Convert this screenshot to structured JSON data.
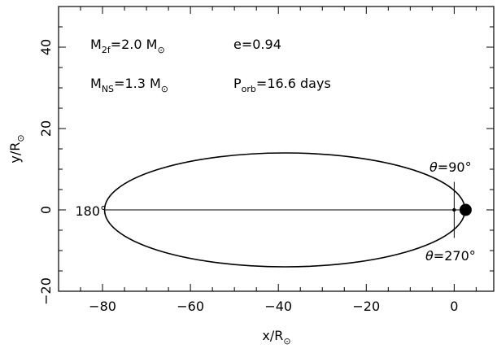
{
  "chart_data": {
    "type": "line",
    "xlabel": {
      "main": "x/R",
      "sub": "⊙"
    },
    "ylabel": {
      "main": "y/R",
      "sub": "⊙"
    },
    "xlim": [
      -90,
      9
    ],
    "ylim": [
      -20,
      50
    ],
    "xticks": [
      -80,
      -60,
      -40,
      -20,
      0
    ],
    "xtick_labels": [
      "−80",
      "−60",
      "−40",
      "−20",
      "0"
    ],
    "yticks": [
      -20,
      0,
      20,
      40
    ],
    "ytick_labels": [
      "−20",
      "0",
      "20",
      "40"
    ],
    "x_minor_step": 5,
    "y_minor_step": 5,
    "grid": false,
    "orbit": {
      "eccentricity": 0.94,
      "semi_major_axis": 41.0,
      "semi_minor_axis": 14.0,
      "focus_x": 0,
      "focus_y": 0
    },
    "series": [
      {
        "role": "orbit-ellipse",
        "points": [
          [
            2.6,
            0
          ],
          [
            2.0,
            4.2
          ],
          [
            0.4,
            6.9
          ],
          [
            -5.0,
            9.9
          ],
          [
            -15.0,
            12.7
          ],
          [
            -25.0,
            13.7
          ],
          [
            -38.4,
            14.0
          ],
          [
            -50.0,
            13.6
          ],
          [
            -60.0,
            12.1
          ],
          [
            -70.0,
            9.0
          ],
          [
            -75.0,
            6.2
          ],
          [
            -78.0,
            3.5
          ],
          [
            -79.4,
            0
          ],
          [
            -78.0,
            -3.5
          ],
          [
            -75.0,
            -6.2
          ],
          [
            -70.0,
            -9.0
          ],
          [
            -60.0,
            -12.1
          ],
          [
            -50.0,
            -13.6
          ],
          [
            -38.4,
            -14.0
          ],
          [
            -25.0,
            -13.7
          ],
          [
            -15.0,
            -12.7
          ],
          [
            -5.0,
            -9.9
          ],
          [
            0.4,
            -6.9
          ],
          [
            2.0,
            -4.2
          ],
          [
            2.6,
            0
          ]
        ]
      },
      {
        "role": "major-axis-line",
        "points": [
          [
            -79.4,
            0
          ],
          [
            2.6,
            0
          ]
        ]
      },
      {
        "role": "latus-rectum-line",
        "points": [
          [
            0,
            6.9
          ],
          [
            0,
            -6.9
          ]
        ]
      }
    ],
    "markers": [
      {
        "role": "neutron-star",
        "x": 0,
        "y": 0,
        "size": "small"
      },
      {
        "role": "companion-star",
        "x": 2.6,
        "y": 0,
        "size": "large"
      }
    ],
    "annotations": {
      "m2f": {
        "pre": "M",
        "sub": "2f",
        "mid": "=2.0 M",
        "sub2": "⊙"
      },
      "ecc": "e=0.94",
      "mns": {
        "pre": "M",
        "sub": "NS",
        "mid": "=1.3 M",
        "sub2": "⊙"
      },
      "porb": {
        "pre": "P",
        "sub": "orb",
        "post": "=16.6 days"
      },
      "theta90": {
        "sym": "θ",
        "text": "=90°"
      },
      "theta180": "180°",
      "theta270": {
        "sym": "θ",
        "text": "=270°"
      }
    }
  }
}
